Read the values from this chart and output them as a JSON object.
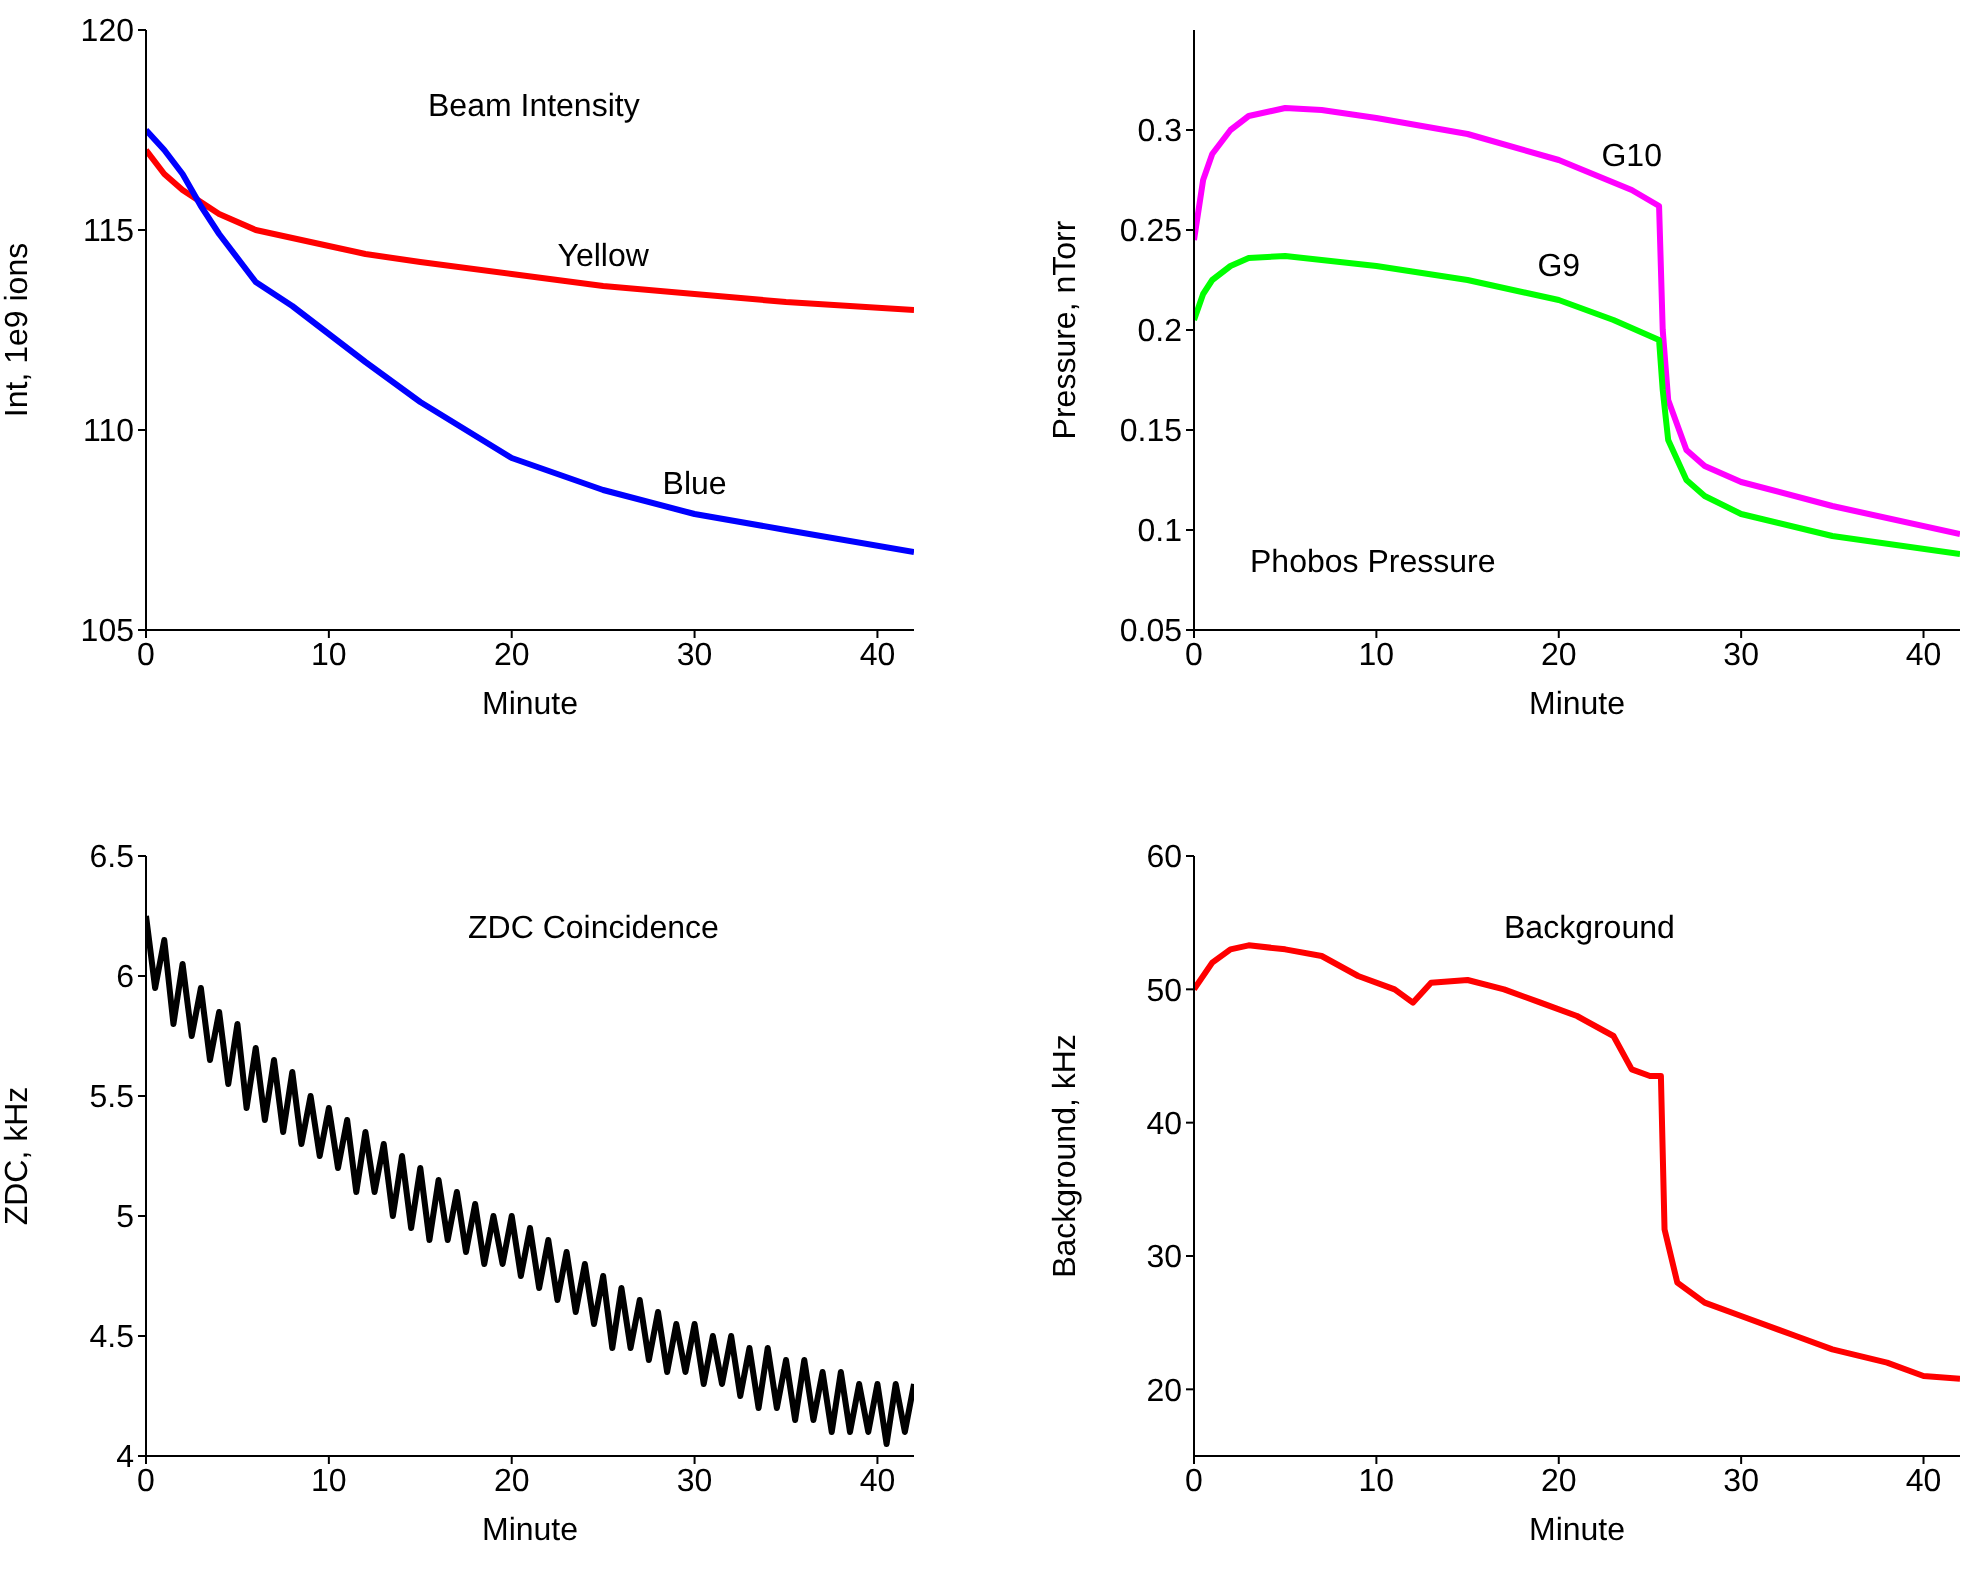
{
  "chart_data": [
    {
      "type": "line",
      "title": "Beam Intensity",
      "xlabel": "Minute",
      "ylabel": "Int, 1e9 ions",
      "xlim": [
        0,
        42
      ],
      "xticks": [
        0,
        10,
        20,
        30,
        40
      ],
      "ylim": [
        105,
        120
      ],
      "yticks": [
        105,
        110,
        115,
        120
      ],
      "series": [
        {
          "name": "Yellow",
          "color": "#ff0000",
          "x": [
            0,
            1,
            2,
            3,
            4,
            6,
            8,
            10,
            12,
            15,
            20,
            25,
            30,
            35,
            42
          ],
          "values": [
            117,
            116.4,
            116,
            115.7,
            115.4,
            115,
            114.8,
            114.6,
            114.4,
            114.2,
            113.9,
            113.6,
            113.4,
            113.2,
            113
          ]
        },
        {
          "name": "Blue",
          "color": "#0000ff",
          "x": [
            0,
            1,
            2,
            3,
            4,
            6,
            8,
            10,
            12,
            15,
            20,
            25,
            30,
            35,
            42
          ],
          "values": [
            117.5,
            117,
            116.4,
            115.6,
            114.9,
            113.7,
            113.1,
            112.4,
            111.7,
            110.7,
            109.3,
            108.5,
            107.9,
            107.5,
            106.95
          ]
        }
      ]
    },
    {
      "type": "line",
      "title": "Phobos Pressure",
      "xlabel": "Minute",
      "ylabel": "Pressure, nTorr",
      "xlim": [
        0,
        42
      ],
      "xticks": [
        0,
        10,
        20,
        30,
        40
      ],
      "ylim": [
        0.05,
        0.35
      ],
      "yticks": [
        0.05,
        0.1,
        0.15,
        0.2,
        0.25,
        0.3
      ],
      "series": [
        {
          "name": "G10",
          "color": "#ff00ff",
          "x": [
            0,
            0.5,
            1,
            2,
            3,
            5,
            7,
            10,
            15,
            20,
            24,
            25.5,
            25.7,
            26,
            27,
            28,
            30,
            35,
            42
          ],
          "values": [
            0.245,
            0.275,
            0.288,
            0.3,
            0.307,
            0.311,
            0.31,
            0.306,
            0.298,
            0.285,
            0.27,
            0.262,
            0.2,
            0.165,
            0.14,
            0.132,
            0.124,
            0.112,
            0.098
          ]
        },
        {
          "name": "G9",
          "color": "#00ff00",
          "x": [
            0,
            0.5,
            1,
            2,
            3,
            5,
            7,
            10,
            15,
            20,
            23,
            25.5,
            25.7,
            26,
            27,
            28,
            30,
            35,
            42
          ],
          "values": [
            0.205,
            0.218,
            0.225,
            0.232,
            0.236,
            0.237,
            0.235,
            0.232,
            0.225,
            0.215,
            0.205,
            0.195,
            0.17,
            0.145,
            0.125,
            0.117,
            0.108,
            0.097,
            0.088
          ]
        }
      ]
    },
    {
      "type": "line",
      "title": "ZDC Coincidence",
      "xlabel": "Minute",
      "ylabel": "ZDC, kHz",
      "xlim": [
        0,
        42
      ],
      "xticks": [
        0,
        10,
        20,
        30,
        40
      ],
      "ylim": [
        4,
        6.5
      ],
      "yticks": [
        4,
        4.5,
        5,
        5.5,
        6,
        6.5
      ],
      "series": [
        {
          "color": "#000000",
          "x": [
            0,
            0.5,
            1,
            1.5,
            2,
            2.5,
            3,
            3.5,
            4,
            4.5,
            5,
            5.5,
            6,
            6.5,
            7,
            7.5,
            8,
            8.5,
            9,
            9.5,
            10,
            10.5,
            11,
            11.5,
            12,
            12.5,
            13,
            13.5,
            14,
            14.5,
            15,
            15.5,
            16,
            16.5,
            17,
            17.5,
            18,
            18.5,
            19,
            19.5,
            20,
            20.5,
            21,
            21.5,
            22,
            22.5,
            23,
            23.5,
            24,
            24.5,
            25,
            25.5,
            26,
            26.5,
            27,
            27.5,
            28,
            28.5,
            29,
            29.5,
            30,
            30.5,
            31,
            31.5,
            32,
            32.5,
            33,
            33.5,
            34,
            34.5,
            35,
            35.5,
            36,
            36.5,
            37,
            37.5,
            38,
            38.5,
            39,
            39.5,
            40,
            40.5,
            41,
            41.5,
            42
          ],
          "values": [
            6.25,
            5.95,
            6.15,
            5.8,
            6.05,
            5.75,
            5.95,
            5.65,
            5.85,
            5.55,
            5.8,
            5.45,
            5.7,
            5.4,
            5.65,
            5.35,
            5.6,
            5.3,
            5.5,
            5.25,
            5.45,
            5.2,
            5.4,
            5.1,
            5.35,
            5.1,
            5.3,
            5.0,
            5.25,
            4.95,
            5.2,
            4.9,
            5.15,
            4.9,
            5.1,
            4.85,
            5.05,
            4.8,
            5.0,
            4.8,
            5.0,
            4.75,
            4.95,
            4.7,
            4.9,
            4.65,
            4.85,
            4.6,
            4.8,
            4.55,
            4.75,
            4.45,
            4.7,
            4.45,
            4.65,
            4.4,
            4.6,
            4.35,
            4.55,
            4.35,
            4.55,
            4.3,
            4.5,
            4.3,
            4.5,
            4.25,
            4.45,
            4.2,
            4.45,
            4.2,
            4.4,
            4.15,
            4.4,
            4.15,
            4.35,
            4.1,
            4.35,
            4.1,
            4.3,
            4.1,
            4.3,
            4.05,
            4.3,
            4.1,
            4.3
          ]
        }
      ]
    },
    {
      "type": "line",
      "title": "Background",
      "xlabel": "Minute",
      "ylabel": "Background, kHz",
      "xlim": [
        0,
        42
      ],
      "xticks": [
        0,
        10,
        20,
        30,
        40
      ],
      "ylim": [
        15,
        60
      ],
      "yticks": [
        20,
        30,
        40,
        50,
        60
      ],
      "series": [
        {
          "color": "#ff0000",
          "x": [
            0,
            1,
            2,
            3,
            5,
            7,
            9,
            11,
            12,
            13,
            15,
            17,
            19,
            21,
            23,
            24,
            25,
            25.6,
            25.8,
            26.5,
            28,
            30,
            33,
            35,
            38,
            40,
            42
          ],
          "values": [
            50,
            52,
            53,
            53.3,
            53,
            52.5,
            51,
            50,
            49,
            50.5,
            50.7,
            50,
            49,
            48,
            46.5,
            44,
            43.5,
            43.5,
            32,
            28,
            26.5,
            25.5,
            24,
            23,
            22,
            21,
            20.8
          ]
        }
      ]
    }
  ]
}
